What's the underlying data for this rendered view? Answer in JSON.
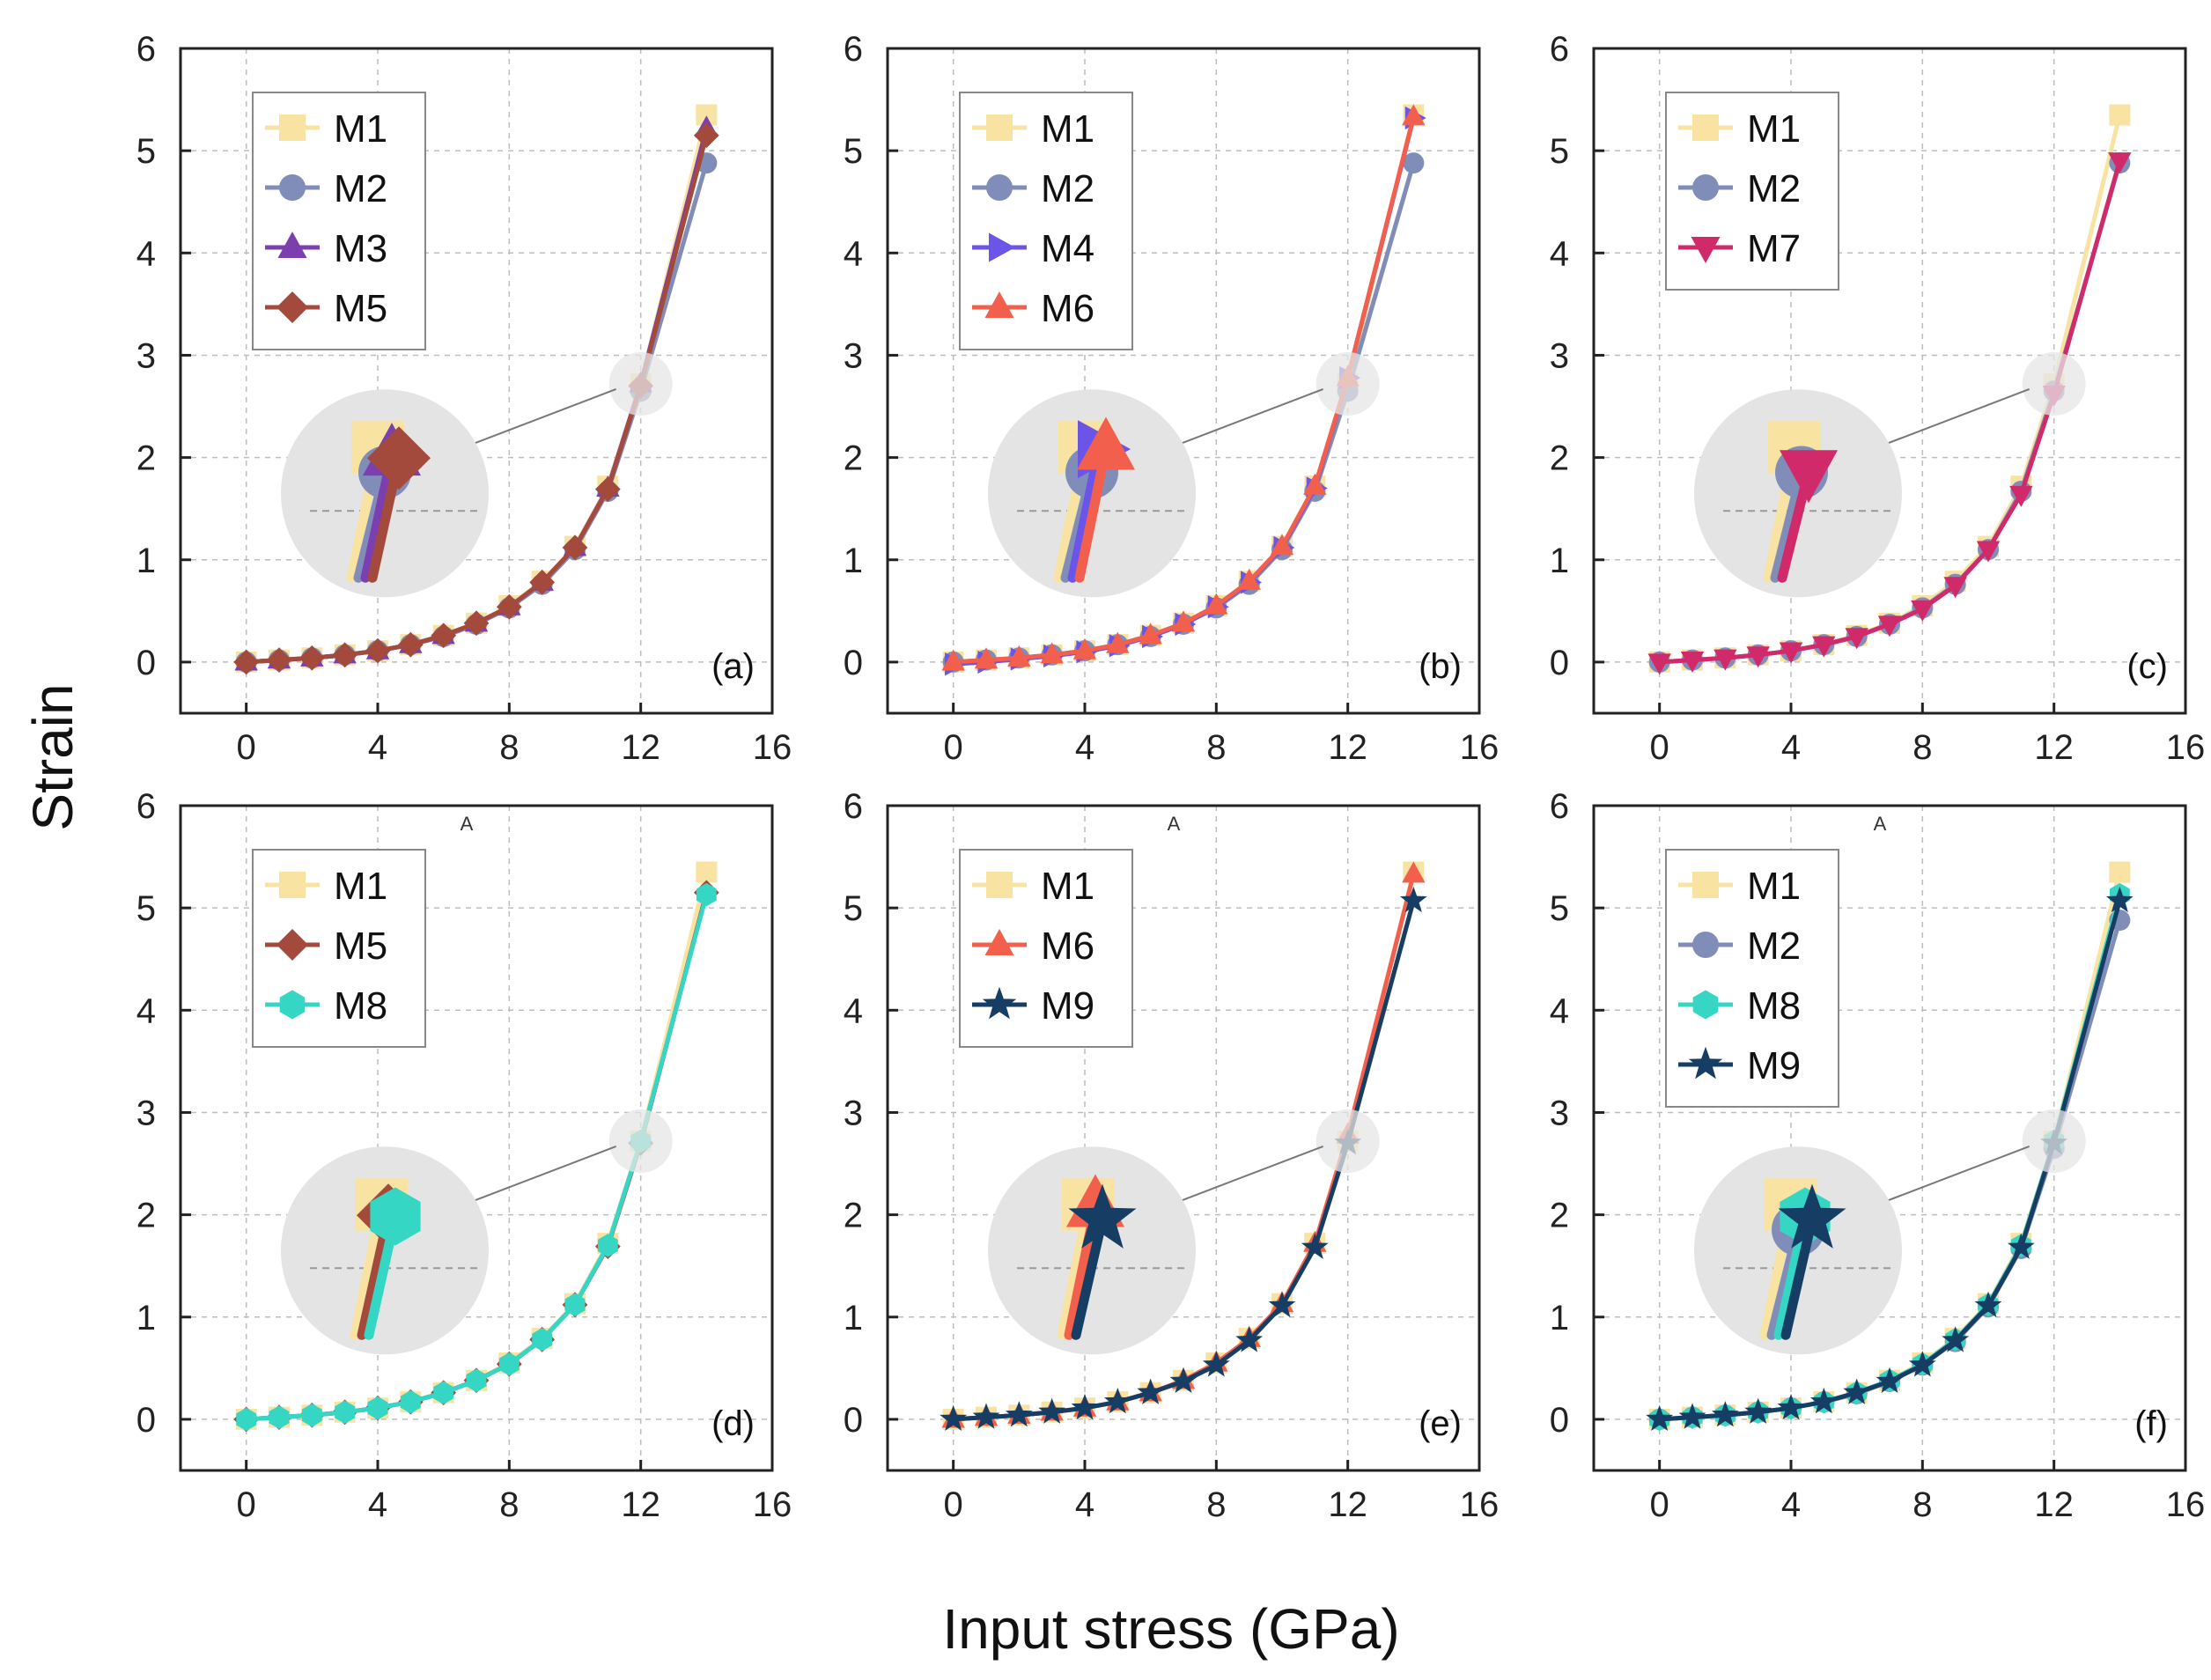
{
  "figure": {
    "xlabel": "Input stress (GPa)",
    "ylabel": "Strain"
  },
  "colors": {
    "M1": "#f9e3a3",
    "M2": "#7f8db8",
    "M3": "#7b3fb0",
    "M4": "#6a55e8",
    "M5": "#a34a3c",
    "M6": "#f25f4c",
    "M7": "#d12a6b",
    "M8": "#35d6c4",
    "M9": "#163d63"
  },
  "markers": {
    "M1": "square",
    "M2": "circle",
    "M3": "triangle-up",
    "M4": "triangle-right",
    "M5": "diamond",
    "M6": "triangle-up",
    "M7": "triangle-down",
    "M8": "hexagon",
    "M9": "star"
  },
  "chart_data": [
    {
      "type": "line",
      "panel_label": "(a)",
      "stray_text": "",
      "xlim": [
        -2,
        16
      ],
      "ylim": [
        -0.5,
        6
      ],
      "xticks": [
        0,
        4,
        8,
        12,
        16
      ],
      "yticks": [
        0,
        1,
        2,
        3,
        4,
        5,
        6
      ],
      "legend": [
        "M1",
        "M2",
        "M3",
        "M5"
      ],
      "x": [
        0,
        1,
        2,
        3,
        4,
        5,
        6,
        7,
        8,
        9,
        10,
        11,
        12,
        14
      ],
      "series": [
        {
          "name": "M1",
          "values": [
            0,
            0.02,
            0.04,
            0.07,
            0.11,
            0.17,
            0.26,
            0.38,
            0.55,
            0.79,
            1.13,
            1.72,
            2.72,
            5.35
          ]
        },
        {
          "name": "M2",
          "values": [
            0,
            0.02,
            0.04,
            0.07,
            0.11,
            0.17,
            0.25,
            0.37,
            0.53,
            0.76,
            1.1,
            1.67,
            2.65,
            4.88
          ]
        },
        {
          "name": "M3",
          "values": [
            0,
            0.02,
            0.04,
            0.07,
            0.11,
            0.17,
            0.26,
            0.38,
            0.54,
            0.78,
            1.12,
            1.7,
            2.72,
            5.22
          ]
        },
        {
          "name": "M5",
          "values": [
            0,
            0.02,
            0.04,
            0.07,
            0.11,
            0.17,
            0.26,
            0.38,
            0.54,
            0.78,
            1.12,
            1.69,
            2.7,
            5.15
          ]
        }
      ]
    },
    {
      "type": "line",
      "panel_label": "(b)",
      "stray_text": "",
      "xlim": [
        -2,
        16
      ],
      "ylim": [
        -0.5,
        6
      ],
      "xticks": [
        0,
        4,
        8,
        12,
        16
      ],
      "yticks": [
        0,
        1,
        2,
        3,
        4,
        5,
        6
      ],
      "legend": [
        "M1",
        "M2",
        "M4",
        "M6"
      ],
      "x": [
        0,
        1,
        2,
        3,
        4,
        5,
        6,
        7,
        8,
        9,
        10,
        11,
        12,
        14
      ],
      "series": [
        {
          "name": "M1",
          "values": [
            0,
            0.02,
            0.04,
            0.07,
            0.11,
            0.17,
            0.26,
            0.38,
            0.55,
            0.79,
            1.13,
            1.72,
            2.72,
            5.35
          ]
        },
        {
          "name": "M2",
          "values": [
            0,
            0.02,
            0.04,
            0.07,
            0.11,
            0.17,
            0.25,
            0.37,
            0.53,
            0.76,
            1.1,
            1.67,
            2.65,
            4.88
          ]
        },
        {
          "name": "M4",
          "values": [
            -0.02,
            0.0,
            0.03,
            0.06,
            0.1,
            0.16,
            0.25,
            0.37,
            0.54,
            0.78,
            1.12,
            1.7,
            2.78,
            5.32
          ]
        },
        {
          "name": "M6",
          "values": [
            0,
            0.02,
            0.04,
            0.07,
            0.11,
            0.17,
            0.26,
            0.38,
            0.55,
            0.79,
            1.13,
            1.72,
            2.78,
            5.33
          ]
        }
      ]
    },
    {
      "type": "line",
      "panel_label": "(c)",
      "stray_text": "",
      "xlim": [
        -2,
        16
      ],
      "ylim": [
        -0.5,
        6
      ],
      "xticks": [
        0,
        4,
        8,
        12,
        16
      ],
      "yticks": [
        0,
        1,
        2,
        3,
        4,
        5,
        6
      ],
      "legend": [
        "M1",
        "M2",
        "M7"
      ],
      "x": [
        0,
        1,
        2,
        3,
        4,
        5,
        6,
        7,
        8,
        9,
        10,
        11,
        12,
        14
      ],
      "series": [
        {
          "name": "M1",
          "values": [
            0,
            0.02,
            0.04,
            0.07,
            0.11,
            0.17,
            0.26,
            0.38,
            0.55,
            0.79,
            1.13,
            1.72,
            2.72,
            5.35
          ]
        },
        {
          "name": "M2",
          "values": [
            0,
            0.02,
            0.04,
            0.07,
            0.11,
            0.17,
            0.25,
            0.37,
            0.53,
            0.76,
            1.1,
            1.67,
            2.65,
            4.88
          ]
        },
        {
          "name": "M7",
          "values": [
            0,
            0.02,
            0.04,
            0.07,
            0.11,
            0.17,
            0.25,
            0.37,
            0.52,
            0.75,
            1.1,
            1.64,
            2.62,
            4.9
          ]
        }
      ]
    },
    {
      "type": "line",
      "panel_label": "(d)",
      "stray_text": "A",
      "xlim": [
        -2,
        16
      ],
      "ylim": [
        -0.5,
        6
      ],
      "xticks": [
        0,
        4,
        8,
        12,
        16
      ],
      "yticks": [
        0,
        1,
        2,
        3,
        4,
        5,
        6
      ],
      "legend": [
        "M1",
        "M5",
        "M8"
      ],
      "x": [
        0,
        1,
        2,
        3,
        4,
        5,
        6,
        7,
        8,
        9,
        10,
        11,
        12,
        14
      ],
      "series": [
        {
          "name": "M1",
          "values": [
            0,
            0.02,
            0.04,
            0.07,
            0.11,
            0.17,
            0.26,
            0.38,
            0.55,
            0.79,
            1.13,
            1.72,
            2.72,
            5.35
          ]
        },
        {
          "name": "M5",
          "values": [
            0,
            0.02,
            0.04,
            0.07,
            0.11,
            0.17,
            0.26,
            0.38,
            0.54,
            0.78,
            1.12,
            1.69,
            2.7,
            5.15
          ]
        },
        {
          "name": "M8",
          "values": [
            0,
            0.02,
            0.04,
            0.07,
            0.11,
            0.17,
            0.26,
            0.38,
            0.54,
            0.78,
            1.12,
            1.7,
            2.72,
            5.13
          ]
        }
      ]
    },
    {
      "type": "line",
      "panel_label": "(e)",
      "stray_text": "A",
      "xlim": [
        -2,
        16
      ],
      "ylim": [
        -0.5,
        6
      ],
      "xticks": [
        0,
        4,
        8,
        12,
        16
      ],
      "yticks": [
        0,
        1,
        2,
        3,
        4,
        5,
        6
      ],
      "legend": [
        "M1",
        "M6",
        "M9"
      ],
      "x": [
        0,
        1,
        2,
        3,
        4,
        5,
        6,
        7,
        8,
        9,
        10,
        11,
        12,
        14
      ],
      "series": [
        {
          "name": "M1",
          "values": [
            0,
            0.02,
            0.04,
            0.07,
            0.11,
            0.17,
            0.26,
            0.38,
            0.55,
            0.79,
            1.13,
            1.72,
            2.72,
            5.35
          ]
        },
        {
          "name": "M6",
          "values": [
            0,
            0.02,
            0.04,
            0.07,
            0.11,
            0.17,
            0.26,
            0.38,
            0.55,
            0.79,
            1.13,
            1.72,
            2.78,
            5.33
          ]
        },
        {
          "name": "M9",
          "values": [
            0,
            0.02,
            0.04,
            0.07,
            0.11,
            0.17,
            0.26,
            0.37,
            0.53,
            0.77,
            1.11,
            1.68,
            2.7,
            5.07
          ]
        }
      ]
    },
    {
      "type": "line",
      "panel_label": "(f)",
      "stray_text": "A",
      "xlim": [
        -2,
        16
      ],
      "ylim": [
        -0.5,
        6
      ],
      "xticks": [
        0,
        4,
        8,
        12,
        16
      ],
      "yticks": [
        0,
        1,
        2,
        3,
        4,
        5,
        6
      ],
      "legend": [
        "M1",
        "M2",
        "M8",
        "M9"
      ],
      "x": [
        0,
        1,
        2,
        3,
        4,
        5,
        6,
        7,
        8,
        9,
        10,
        11,
        12,
        14
      ],
      "series": [
        {
          "name": "M1",
          "values": [
            0,
            0.02,
            0.04,
            0.07,
            0.11,
            0.17,
            0.26,
            0.38,
            0.55,
            0.79,
            1.13,
            1.72,
            2.72,
            5.35
          ]
        },
        {
          "name": "M2",
          "values": [
            0,
            0.02,
            0.04,
            0.07,
            0.11,
            0.17,
            0.25,
            0.37,
            0.53,
            0.76,
            1.1,
            1.67,
            2.65,
            4.88
          ]
        },
        {
          "name": "M8",
          "values": [
            0,
            0.02,
            0.04,
            0.07,
            0.11,
            0.17,
            0.26,
            0.38,
            0.54,
            0.78,
            1.12,
            1.7,
            2.72,
            5.13
          ]
        },
        {
          "name": "M9",
          "values": [
            0,
            0.02,
            0.04,
            0.07,
            0.11,
            0.17,
            0.26,
            0.37,
            0.53,
            0.77,
            1.11,
            1.68,
            2.7,
            5.07
          ]
        }
      ]
    }
  ]
}
